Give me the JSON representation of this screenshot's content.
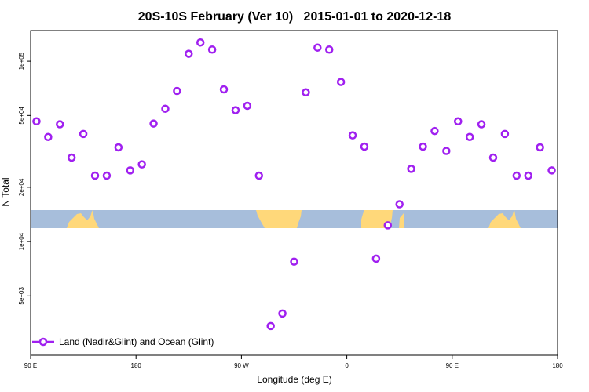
{
  "chart_data": {
    "type": "scatter",
    "title": "20S-10S February (Ver 10)   2015-01-01 to 2020-12-18",
    "xlabel": "Longitude (deg E)",
    "ylabel": "N Total",
    "y_scale": "log",
    "xlim": [
      90,
      540
    ],
    "ylim_log10": [
      3.37,
      5.17
    ],
    "x_ticks": [
      {
        "value": 90,
        "label": "90 E"
      },
      {
        "value": 180,
        "label": "180"
      },
      {
        "value": 270,
        "label": "90 W"
      },
      {
        "value": 360,
        "label": "0"
      },
      {
        "value": 450,
        "label": "90 E"
      },
      {
        "value": 540,
        "label": "180"
      }
    ],
    "y_ticks": [
      {
        "value": 100000,
        "label": "1e+05"
      },
      {
        "value": 50000,
        "label": "5e+04"
      },
      {
        "value": 20000,
        "label": "2e+04"
      },
      {
        "value": 10000,
        "label": "1e+04"
      },
      {
        "value": 5000,
        "label": "5e+03"
      }
    ],
    "grid": false,
    "legend_position": "bottom-left",
    "series": [
      {
        "name": "Land (Nadir&Glint) and Ocean (Glint)",
        "color": "#a020f0",
        "marker": "open-circle",
        "x": [
          95,
          105,
          115,
          125,
          135,
          145,
          155,
          165,
          175,
          185,
          195,
          205,
          215,
          225,
          235,
          245,
          255,
          265,
          275,
          285,
          295,
          305,
          315,
          325,
          335,
          345,
          355,
          365,
          375,
          385,
          395,
          405,
          415,
          425,
          435,
          445,
          455,
          465,
          475,
          485,
          495,
          505,
          515,
          525,
          535
        ],
        "y": [
          46400,
          38000,
          44700,
          29200,
          39500,
          23200,
          23200,
          33300,
          24800,
          26800,
          45100,
          54500,
          68400,
          110000,
          127000,
          116000,
          69800,
          53500,
          56600,
          23200,
          3400,
          3990,
          7740,
          67200,
          119000,
          116000,
          76700,
          38800,
          33600,
          8040,
          12300,
          16100,
          25300,
          33600,
          41000,
          31800,
          46400,
          38000,
          44700,
          29200,
          39500,
          23200,
          23200,
          33300,
          24800
        ]
      }
    ],
    "land_ocean_strip": {
      "ocean_color": "#a7bedb",
      "land_color": "#ffd87a"
    }
  }
}
